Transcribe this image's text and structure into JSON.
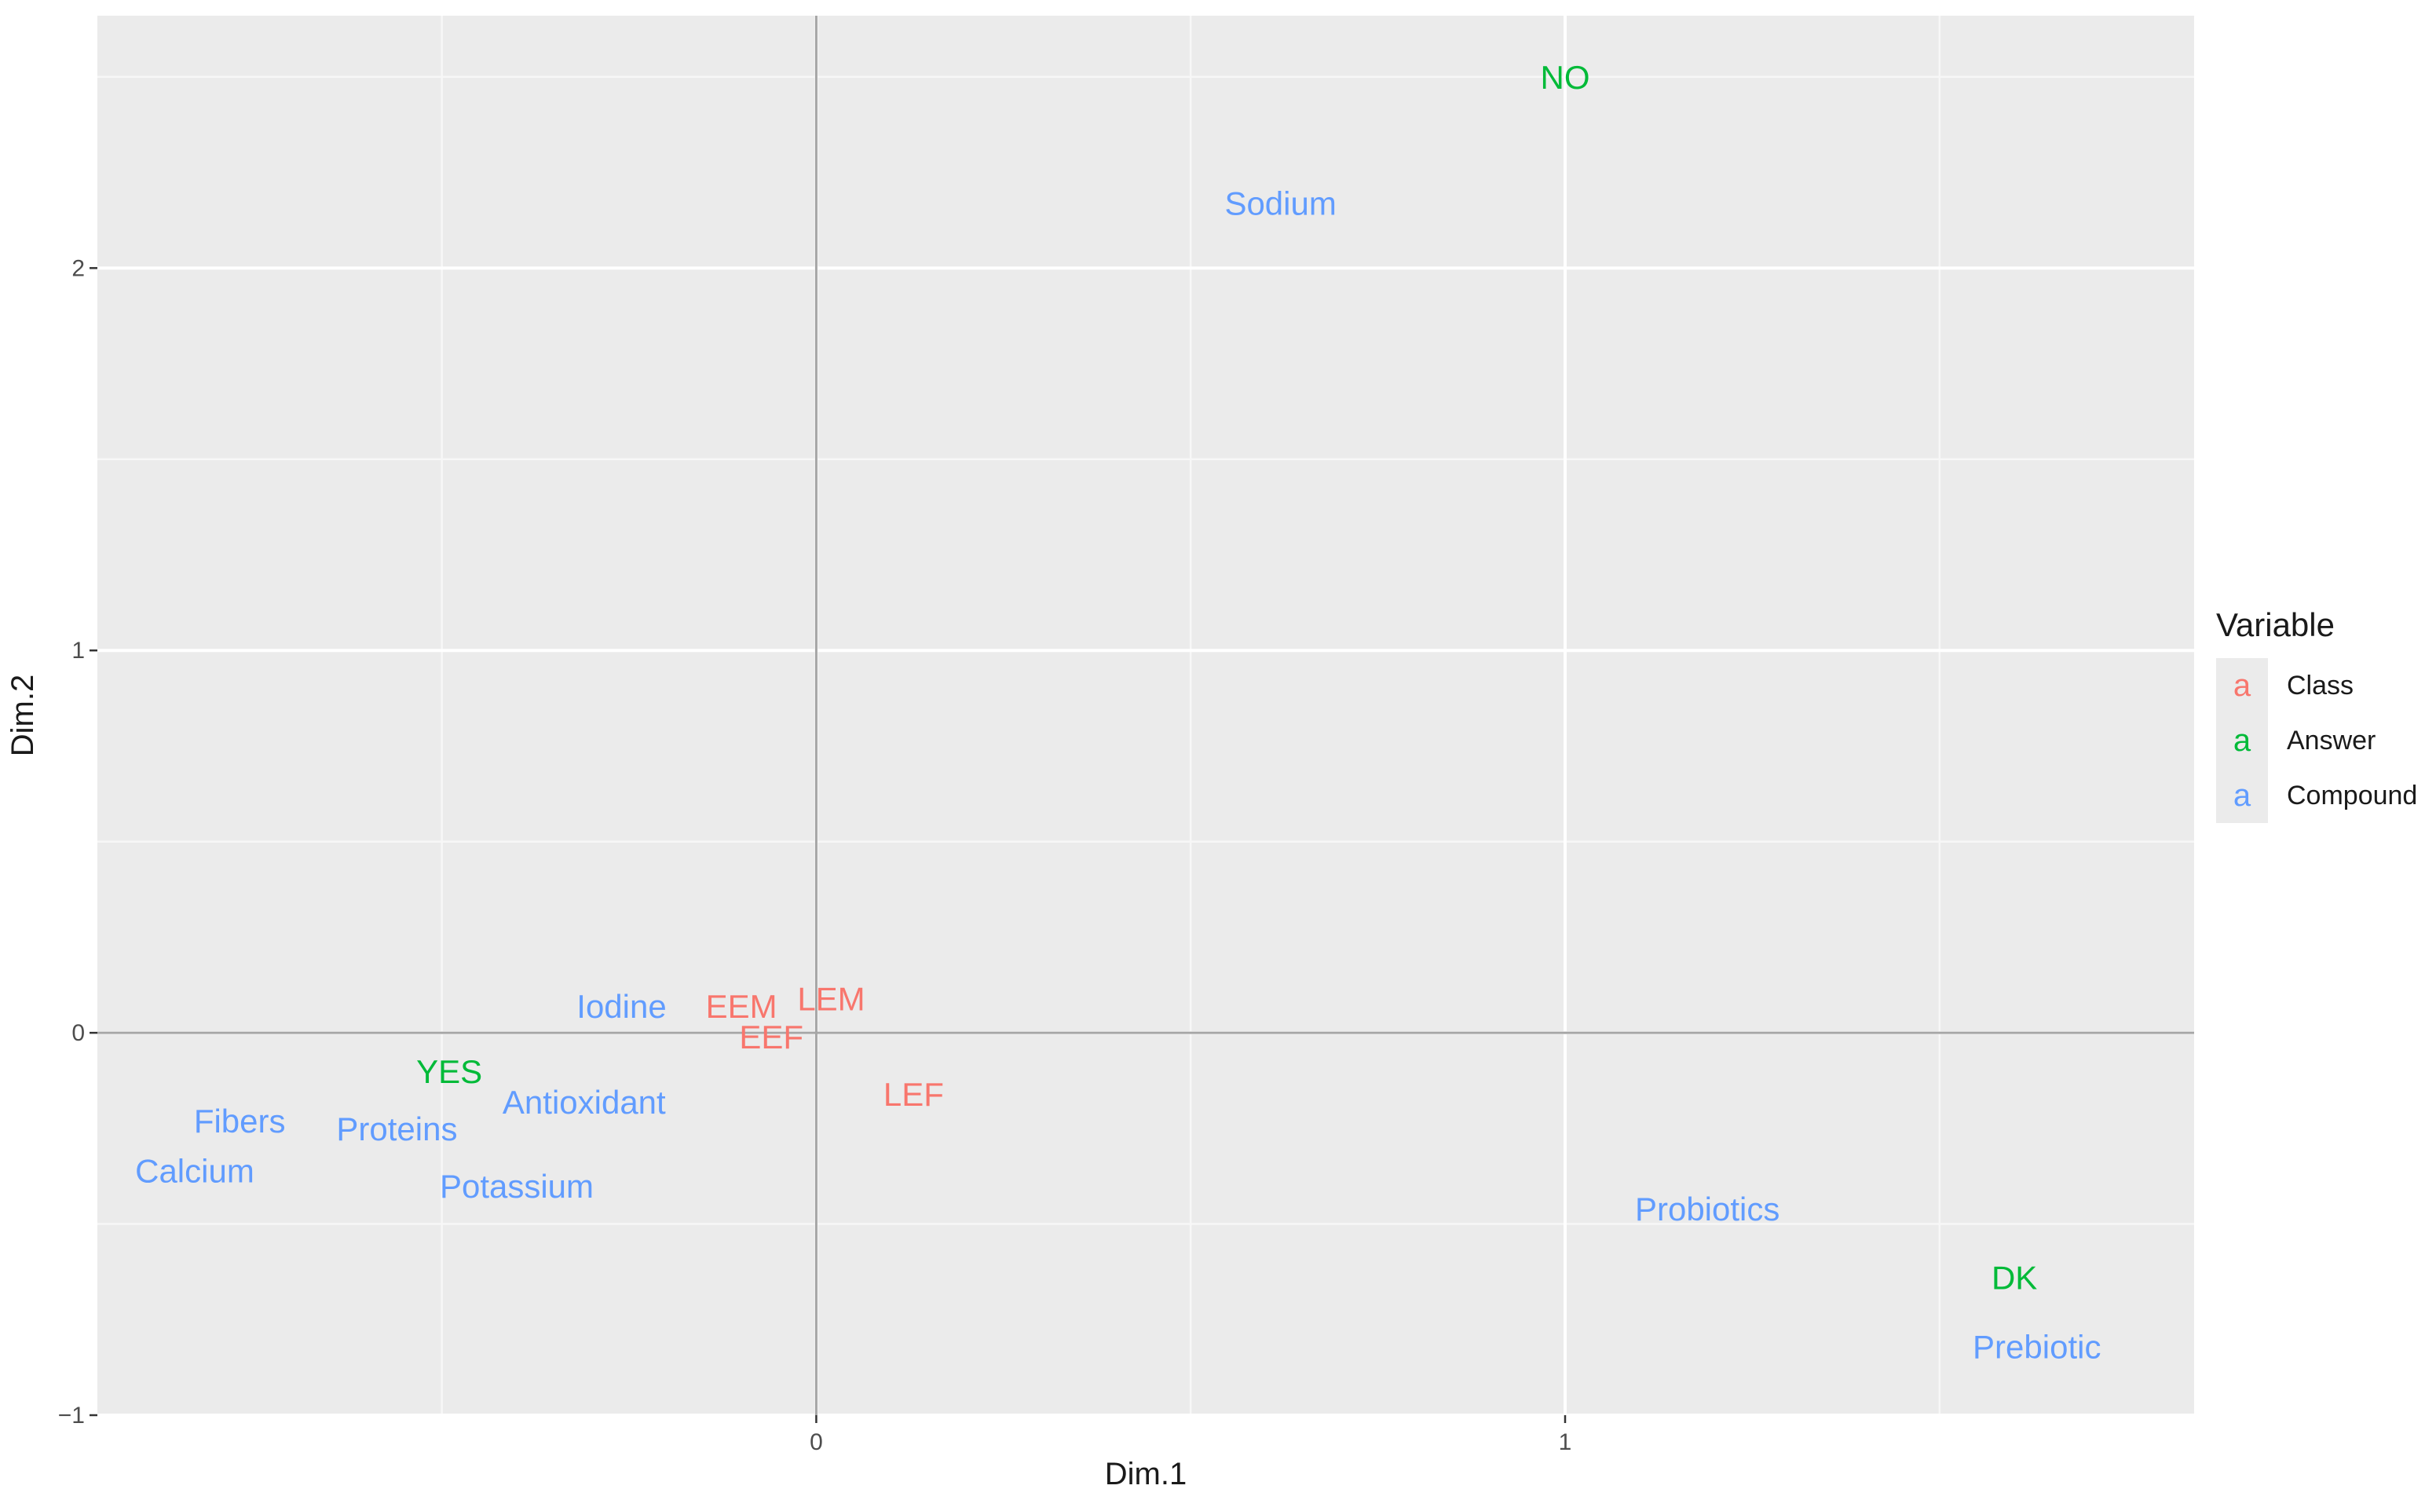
{
  "chart_data": {
    "type": "scatter",
    "xlabel": "Dim.1",
    "ylabel": "Dim.2",
    "xlim": [
      -0.96,
      1.84
    ],
    "ylim": [
      -1.0,
      2.66
    ],
    "x_ticks": [
      0,
      1
    ],
    "x_tick_labels": [
      "0",
      "1"
    ],
    "y_ticks": [
      -1,
      0,
      1,
      2
    ],
    "y_tick_labels": [
      "−1",
      "0",
      "1",
      "2"
    ],
    "grid": true,
    "legend": {
      "title": "Variable",
      "position": "right",
      "glyph": "a",
      "entries": [
        {
          "label": "Class",
          "color": "#F8766D"
        },
        {
          "label": "Answer",
          "color": "#00BA38"
        },
        {
          "label": "Compound",
          "color": "#619CFF"
        }
      ]
    },
    "series": [
      {
        "name": "Class",
        "color": "#F8766D",
        "points": [
          {
            "label": "EEM",
            "x": -0.1,
            "y": 0.07
          },
          {
            "label": "LEM",
            "x": 0.02,
            "y": 0.09
          },
          {
            "label": "EEF",
            "x": -0.06,
            "y": -0.01
          },
          {
            "label": "LEF",
            "x": 0.13,
            "y": -0.16
          }
        ]
      },
      {
        "name": "Answer",
        "color": "#00BA38",
        "points": [
          {
            "label": "NO",
            "x": 1.0,
            "y": 2.5
          },
          {
            "label": "YES",
            "x": -0.49,
            "y": -0.1
          },
          {
            "label": "DK",
            "x": 1.6,
            "y": -0.64
          }
        ]
      },
      {
        "name": "Compound",
        "color": "#619CFF",
        "points": [
          {
            "label": "Sodium",
            "x": 0.62,
            "y": 2.17
          },
          {
            "label": "Iodine",
            "x": -0.26,
            "y": 0.07
          },
          {
            "label": "Antioxidant",
            "x": -0.31,
            "y": -0.18
          },
          {
            "label": "Fibers",
            "x": -0.77,
            "y": -0.23
          },
          {
            "label": "Proteins",
            "x": -0.56,
            "y": -0.25
          },
          {
            "label": "Calcium",
            "x": -0.83,
            "y": -0.36
          },
          {
            "label": "Potassium",
            "x": -0.4,
            "y": -0.4
          },
          {
            "label": "Probiotics",
            "x": 1.19,
            "y": -0.46
          },
          {
            "label": "Prebiotic",
            "x": 1.63,
            "y": -0.82
          }
        ]
      }
    ]
  }
}
